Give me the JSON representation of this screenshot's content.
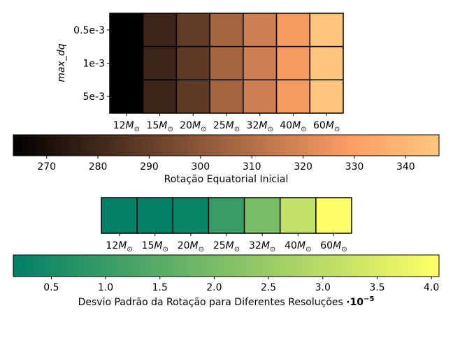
{
  "chart_data": [
    {
      "type": "heatmap",
      "title": "",
      "xlabel": "",
      "ylabel": "max_dq",
      "x_categories": [
        "12",
        "15",
        "20",
        "25",
        "32",
        "40",
        "60"
      ],
      "x_tick_subscript": "⊙",
      "x_tick_symbol": "M",
      "y_categories": [
        "0.5e-3",
        "1e-3",
        "5e-3"
      ],
      "values": [
        [
          263.5,
          279.0,
          288.5,
          306.0,
          316.5,
          327.5,
          345.5
        ],
        [
          263.5,
          279.0,
          288.0,
          306.0,
          316.5,
          327.5,
          345.5
        ],
        [
          263.5,
          279.0,
          288.0,
          306.0,
          316.5,
          327.5,
          345.5
        ]
      ],
      "colormap": "copper",
      "colorbar": {
        "label": "Rotação Equatorial Inicial",
        "range": [
          263.5,
          346.5
        ],
        "ticks": [
          "270",
          "280",
          "290",
          "300",
          "310",
          "320",
          "330",
          "340"
        ],
        "tick_values": [
          270,
          280,
          290,
          300,
          310,
          320,
          330,
          340
        ],
        "colors": [
          "#000000",
          "#ffc77f"
        ]
      }
    },
    {
      "type": "heatmap",
      "title": "",
      "xlabel": "",
      "ylabel": "",
      "x_categories": [
        "12",
        "15",
        "20",
        "25",
        "32",
        "40",
        "60"
      ],
      "x_tick_subscript": "⊙",
      "x_tick_symbol": "M",
      "values": [
        [
          0.18,
          0.16,
          0.3,
          1.0,
          2.0,
          3.15,
          4.05
        ]
      ],
      "colormap": "summer",
      "colorbar": {
        "label": "Desvio Padrão da Rotação para Diferentes Resoluções ",
        "label_suffix_base": "·10",
        "label_suffix_exp": "−5",
        "range": [
          0.15,
          4.07
        ],
        "ticks": [
          "0.5",
          "1.0",
          "1.5",
          "2.0",
          "2.5",
          "3.0",
          "3.5",
          "4.0"
        ],
        "tick_values": [
          0.5,
          1.0,
          1.5,
          2.0,
          2.5,
          3.0,
          3.5,
          4.0
        ],
        "colors": [
          "#008066",
          "#ffff66"
        ]
      }
    }
  ]
}
